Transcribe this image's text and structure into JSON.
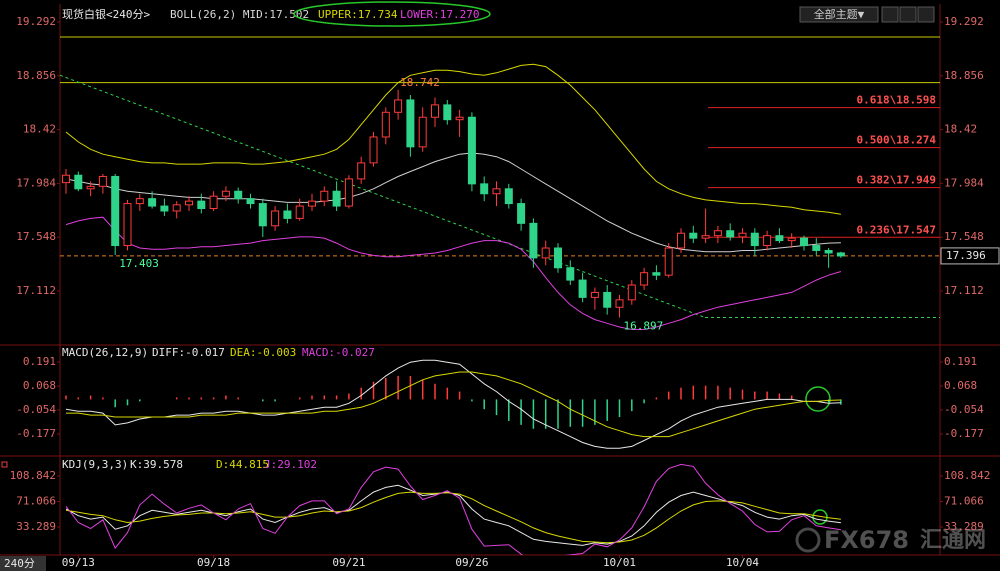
{
  "chart_data": [
    {
      "type": "candlestick",
      "title": "现货白银<240分>",
      "indicator": "BOLL(26,2) MID:17.502",
      "indicator_upper": "UPPER:17.734",
      "indicator_lower": "LOWER:17.270",
      "categories": [
        null,
        "09/13",
        null,
        null,
        null,
        null,
        null,
        null,
        null,
        null,
        null,
        null,
        "09/18",
        null,
        null,
        null,
        null,
        null,
        null,
        null,
        null,
        null,
        null,
        "09/21",
        null,
        null,
        null,
        null,
        null,
        null,
        null,
        null,
        null,
        "09/26",
        null,
        null,
        null,
        null,
        null,
        null,
        null,
        null,
        null,
        null,
        null,
        "10/01",
        null,
        null,
        null,
        null,
        null,
        null,
        null,
        null,
        null,
        "10/04",
        null,
        null,
        null,
        null,
        null,
        null,
        null,
        null
      ],
      "open": [
        17.99,
        18.05,
        17.94,
        17.96,
        18.04,
        17.48,
        17.82,
        17.86,
        17.8,
        17.76,
        17.81,
        17.84,
        17.78,
        17.88,
        17.92,
        17.86,
        17.82,
        17.64,
        17.76,
        17.7,
        17.8,
        17.84,
        17.92,
        17.8,
        18.02,
        18.15,
        18.36,
        18.56,
        18.66,
        18.28,
        18.52,
        18.62,
        18.5,
        18.52,
        17.98,
        17.9,
        17.94,
        17.82,
        17.66,
        17.38,
        17.46,
        17.3,
        17.2,
        17.06,
        17.1,
        16.98,
        17.04,
        17.16,
        17.26,
        17.24,
        17.46,
        17.58,
        17.54,
        17.56,
        17.6,
        17.55,
        17.58,
        17.48,
        17.56,
        17.52,
        17.54,
        17.48,
        17.44,
        17.42
      ],
      "high": [
        18.1,
        18.08,
        18.0,
        18.06,
        18.06,
        17.85,
        17.9,
        17.92,
        17.86,
        17.84,
        17.88,
        17.9,
        17.92,
        17.96,
        17.95,
        17.9,
        17.86,
        17.8,
        17.82,
        17.86,
        17.9,
        17.96,
        18.0,
        18.05,
        18.2,
        18.4,
        18.6,
        18.742,
        18.7,
        18.6,
        18.68,
        18.66,
        18.58,
        18.56,
        18.04,
        18.0,
        17.98,
        17.86,
        17.7,
        17.52,
        17.5,
        17.36,
        17.26,
        17.14,
        17.16,
        17.08,
        17.2,
        17.3,
        17.32,
        17.5,
        17.62,
        17.64,
        17.78,
        17.64,
        17.66,
        17.62,
        17.62,
        17.6,
        17.62,
        17.58,
        17.56,
        17.54,
        17.46,
        17.43
      ],
      "low": [
        17.9,
        17.92,
        17.88,
        17.9,
        17.403,
        17.44,
        17.76,
        17.78,
        17.72,
        17.7,
        17.76,
        17.74,
        17.76,
        17.84,
        17.82,
        17.78,
        17.55,
        17.6,
        17.66,
        17.68,
        17.76,
        17.8,
        17.76,
        17.78,
        17.98,
        18.12,
        18.3,
        18.5,
        18.2,
        18.24,
        18.44,
        18.46,
        18.36,
        17.92,
        17.84,
        17.8,
        17.78,
        17.6,
        17.3,
        17.32,
        17.26,
        17.16,
        17.02,
        16.96,
        16.92,
        16.897,
        17.0,
        17.12,
        17.2,
        17.22,
        17.42,
        17.5,
        17.5,
        17.5,
        17.52,
        17.5,
        17.4,
        17.44,
        17.5,
        17.46,
        17.44,
        17.4,
        17.3,
        17.38
      ],
      "close": [
        18.05,
        17.94,
        17.96,
        18.04,
        17.48,
        17.82,
        17.86,
        17.8,
        17.76,
        17.81,
        17.84,
        17.78,
        17.88,
        17.92,
        17.86,
        17.82,
        17.64,
        17.76,
        17.7,
        17.8,
        17.84,
        17.92,
        17.8,
        18.02,
        18.15,
        18.36,
        18.56,
        18.66,
        18.28,
        18.52,
        18.62,
        18.5,
        18.52,
        17.98,
        17.9,
        17.94,
        17.82,
        17.66,
        17.38,
        17.46,
        17.3,
        17.2,
        17.06,
        17.1,
        16.98,
        17.04,
        17.16,
        17.26,
        17.24,
        17.46,
        17.58,
        17.54,
        17.56,
        17.6,
        17.55,
        17.58,
        17.48,
        17.56,
        17.52,
        17.54,
        17.48,
        17.44,
        17.42,
        17.396
      ],
      "up_color": "#ff3b3b",
      "down_color": "#2fd48a",
      "series": [
        {
          "name": "UPPER",
          "color": "#d8d800",
          "values": [
            18.4,
            18.32,
            18.26,
            18.22,
            18.2,
            18.18,
            18.16,
            18.15,
            18.15,
            18.14,
            18.14,
            18.14,
            18.15,
            18.15,
            18.15,
            18.14,
            18.14,
            18.15,
            18.16,
            18.18,
            18.2,
            18.22,
            18.26,
            18.34,
            18.46,
            18.58,
            18.7,
            18.8,
            18.86,
            18.88,
            18.9,
            18.9,
            18.89,
            18.87,
            18.86,
            18.88,
            18.91,
            18.94,
            18.95,
            18.93,
            18.86,
            18.78,
            18.68,
            18.58,
            18.46,
            18.34,
            18.22,
            18.1,
            18.0,
            17.94,
            17.9,
            17.87,
            17.85,
            17.84,
            17.83,
            17.82,
            17.82,
            17.81,
            17.8,
            17.79,
            17.77,
            17.76,
            17.75,
            17.734
          ]
        },
        {
          "name": "MID",
          "color": "#d0d0d0",
          "values": [
            18.02,
            18.0,
            17.98,
            17.97,
            17.94,
            17.92,
            17.91,
            17.9,
            17.89,
            17.88,
            17.87,
            17.87,
            17.86,
            17.86,
            17.86,
            17.86,
            17.85,
            17.84,
            17.83,
            17.83,
            17.83,
            17.84,
            17.85,
            17.87,
            17.9,
            17.94,
            17.99,
            18.04,
            18.08,
            18.12,
            18.16,
            18.19,
            18.22,
            18.23,
            18.22,
            18.2,
            18.16,
            18.1,
            18.04,
            17.98,
            17.92,
            17.86,
            17.8,
            17.74,
            17.68,
            17.63,
            17.58,
            17.54,
            17.5,
            17.47,
            17.45,
            17.44,
            17.43,
            17.43,
            17.43,
            17.44,
            17.44,
            17.45,
            17.46,
            17.47,
            17.48,
            17.49,
            17.5,
            17.502
          ]
        },
        {
          "name": "LOWER",
          "color": "#e040e0",
          "values": [
            17.65,
            17.68,
            17.7,
            17.71,
            17.6,
            17.5,
            17.46,
            17.45,
            17.45,
            17.46,
            17.46,
            17.47,
            17.47,
            17.48,
            17.49,
            17.5,
            17.52,
            17.53,
            17.54,
            17.55,
            17.55,
            17.54,
            17.5,
            17.45,
            17.42,
            17.4,
            17.39,
            17.39,
            17.4,
            17.41,
            17.42,
            17.44,
            17.47,
            17.5,
            17.52,
            17.52,
            17.5,
            17.45,
            17.35,
            17.22,
            17.1,
            17.0,
            16.93,
            16.88,
            16.85,
            16.82,
            16.8,
            16.8,
            16.82,
            16.85,
            16.88,
            16.92,
            16.95,
            16.98,
            17.0,
            17.02,
            17.04,
            17.06,
            17.08,
            17.1,
            17.15,
            17.2,
            17.24,
            17.27
          ]
        }
      ],
      "ylim": [
        16.674,
        19.389
      ],
      "yticks": [
        17.112,
        17.548,
        17.984,
        18.42,
        18.856,
        19.292
      ],
      "levels": [
        19.17,
        18.8
      ],
      "level_color": "#c8c800",
      "trend_line": [
        18.86,
        16.897
      ],
      "trend_color": "#2fd44a",
      "fib": [
        {
          "value": 18.598,
          "label": "0.618\\18.598"
        },
        {
          "value": 18.274,
          "label": "0.500\\18.274"
        },
        {
          "value": 17.949,
          "label": "0.382\\17.949"
        },
        {
          "value": 17.547,
          "label": "0.236\\17.547"
        }
      ],
      "fib_color": "#e02020",
      "last_price": 17.396,
      "annotations": [
        18.742,
        17.403,
        16.897
      ]
    },
    {
      "type": "macd",
      "title": "MACD(26,12,9)",
      "diff_label": "DIFF:-0.017",
      "dea_label": "DEA:-0.003",
      "macd_label": "MACD:-0.027",
      "series": [
        {
          "name": "DIFF",
          "color": "#e8e8e8",
          "values": [
            -0.05,
            -0.06,
            -0.06,
            -0.07,
            -0.13,
            -0.12,
            -0.1,
            -0.09,
            -0.09,
            -0.08,
            -0.08,
            -0.07,
            -0.07,
            -0.06,
            -0.06,
            -0.07,
            -0.08,
            -0.08,
            -0.07,
            -0.06,
            -0.05,
            -0.04,
            -0.04,
            -0.02,
            0.02,
            0.07,
            0.12,
            0.16,
            0.19,
            0.2,
            0.2,
            0.19,
            0.18,
            0.13,
            0.08,
            0.04,
            -0.01,
            -0.05,
            -0.1,
            -0.13,
            -0.16,
            -0.19,
            -0.22,
            -0.24,
            -0.25,
            -0.25,
            -0.24,
            -0.21,
            -0.18,
            -0.15,
            -0.11,
            -0.08,
            -0.06,
            -0.04,
            -0.03,
            -0.02,
            -0.01,
            0.0,
            0.0,
            0.0,
            -0.01,
            -0.01,
            -0.02,
            -0.017
          ]
        },
        {
          "name": "DEA",
          "color": "#d8d800",
          "values": [
            -0.07,
            -0.07,
            -0.08,
            -0.08,
            -0.09,
            -0.09,
            -0.09,
            -0.09,
            -0.09,
            -0.09,
            -0.09,
            -0.08,
            -0.08,
            -0.08,
            -0.07,
            -0.07,
            -0.07,
            -0.07,
            -0.07,
            -0.07,
            -0.07,
            -0.06,
            -0.06,
            -0.05,
            -0.04,
            -0.02,
            0.01,
            0.04,
            0.07,
            0.1,
            0.12,
            0.13,
            0.14,
            0.14,
            0.13,
            0.12,
            0.1,
            0.08,
            0.05,
            0.02,
            -0.01,
            -0.05,
            -0.08,
            -0.11,
            -0.14,
            -0.16,
            -0.18,
            -0.19,
            -0.19,
            -0.19,
            -0.17,
            -0.15,
            -0.13,
            -0.11,
            -0.09,
            -0.07,
            -0.05,
            -0.04,
            -0.03,
            -0.02,
            -0.01,
            -0.01,
            -0.005,
            -0.003
          ]
        }
      ],
      "histogram": [
        0.02,
        0.01,
        0.02,
        0.01,
        -0.04,
        -0.03,
        -0.01,
        0,
        0,
        0.01,
        0.01,
        0.01,
        0.01,
        0.02,
        0.01,
        0,
        -0.01,
        -0.01,
        0,
        0.01,
        0.02,
        0.02,
        0.02,
        0.03,
        0.06,
        0.09,
        0.11,
        0.12,
        0.12,
        0.1,
        0.08,
        0.06,
        0.04,
        -0.01,
        -0.05,
        -0.08,
        -0.11,
        -0.13,
        -0.15,
        -0.15,
        -0.15,
        -0.14,
        -0.14,
        -0.13,
        -0.11,
        -0.09,
        -0.06,
        -0.02,
        0.01,
        0.04,
        0.06,
        0.07,
        0.07,
        0.07,
        0.06,
        0.05,
        0.04,
        0.04,
        0.03,
        0.02,
        0,
        0,
        -0.015,
        -0.027
      ],
      "macd_label_color": "#e040e0",
      "ylim": [
        -0.284,
        0.278
      ],
      "yticks": [
        -0.177,
        -0.054,
        0.068,
        0.191
      ]
    },
    {
      "type": "kdj",
      "title": "KDJ(9,3,3)",
      "k_label": "K:39.578",
      "d_label": "D:44.815",
      "j_label": "J:29.102",
      "series": [
        {
          "name": "K",
          "color": "#e8e8e8",
          "values": [
            60,
            50,
            45,
            48,
            30,
            35,
            50,
            58,
            55,
            52,
            55,
            58,
            54,
            50,
            56,
            60,
            45,
            40,
            48,
            55,
            60,
            62,
            55,
            58,
            72,
            85,
            92,
            95,
            88,
            80,
            82,
            85,
            80,
            60,
            45,
            40,
            35,
            25,
            15,
            12,
            10,
            8,
            6,
            10,
            8,
            12,
            20,
            35,
            55,
            70,
            80,
            85,
            80,
            75,
            70,
            65,
            55,
            48,
            45,
            50,
            52,
            45,
            42,
            39.578
          ]
        },
        {
          "name": "D",
          "color": "#d8d800",
          "values": [
            58,
            55,
            52,
            50,
            44,
            40,
            42,
            46,
            49,
            51,
            52,
            54,
            54,
            53,
            54,
            56,
            52,
            48,
            48,
            50,
            54,
            57,
            56,
            57,
            62,
            70,
            77,
            83,
            85,
            83,
            83,
            84,
            82,
            75,
            65,
            57,
            49,
            41,
            32,
            25,
            20,
            16,
            12,
            11,
            10,
            11,
            14,
            21,
            32,
            45,
            57,
            66,
            71,
            72,
            71,
            69,
            64,
            59,
            54,
            53,
            53,
            50,
            47,
            44.815
          ]
        },
        {
          "name": "J",
          "color": "#e040e0",
          "values": [
            64,
            40,
            31,
            44,
            2,
            25,
            66,
            82,
            67,
            54,
            61,
            66,
            54,
            44,
            60,
            68,
            31,
            24,
            48,
            65,
            72,
            72,
            53,
            60,
            92,
            115,
            122,
            119,
            94,
            74,
            80,
            87,
            76,
            30,
            5,
            6,
            7,
            -7,
            -19,
            -14,
            -10,
            -8,
            -6,
            8,
            4,
            14,
            32,
            63,
            101,
            120,
            126,
            123,
            98,
            81,
            68,
            57,
            37,
            26,
            27,
            44,
            50,
            35,
            32,
            29.102
          ]
        }
      ],
      "ylim": [
        -8.2,
        135.5
      ],
      "yticks": [
        33.289,
        71.066,
        108.842
      ]
    }
  ],
  "toolbar": {
    "theme_button": "全部主题▼"
  },
  "period_tab": "240分",
  "watermark": {
    "brand": "FX678",
    "site": "汇通网"
  }
}
